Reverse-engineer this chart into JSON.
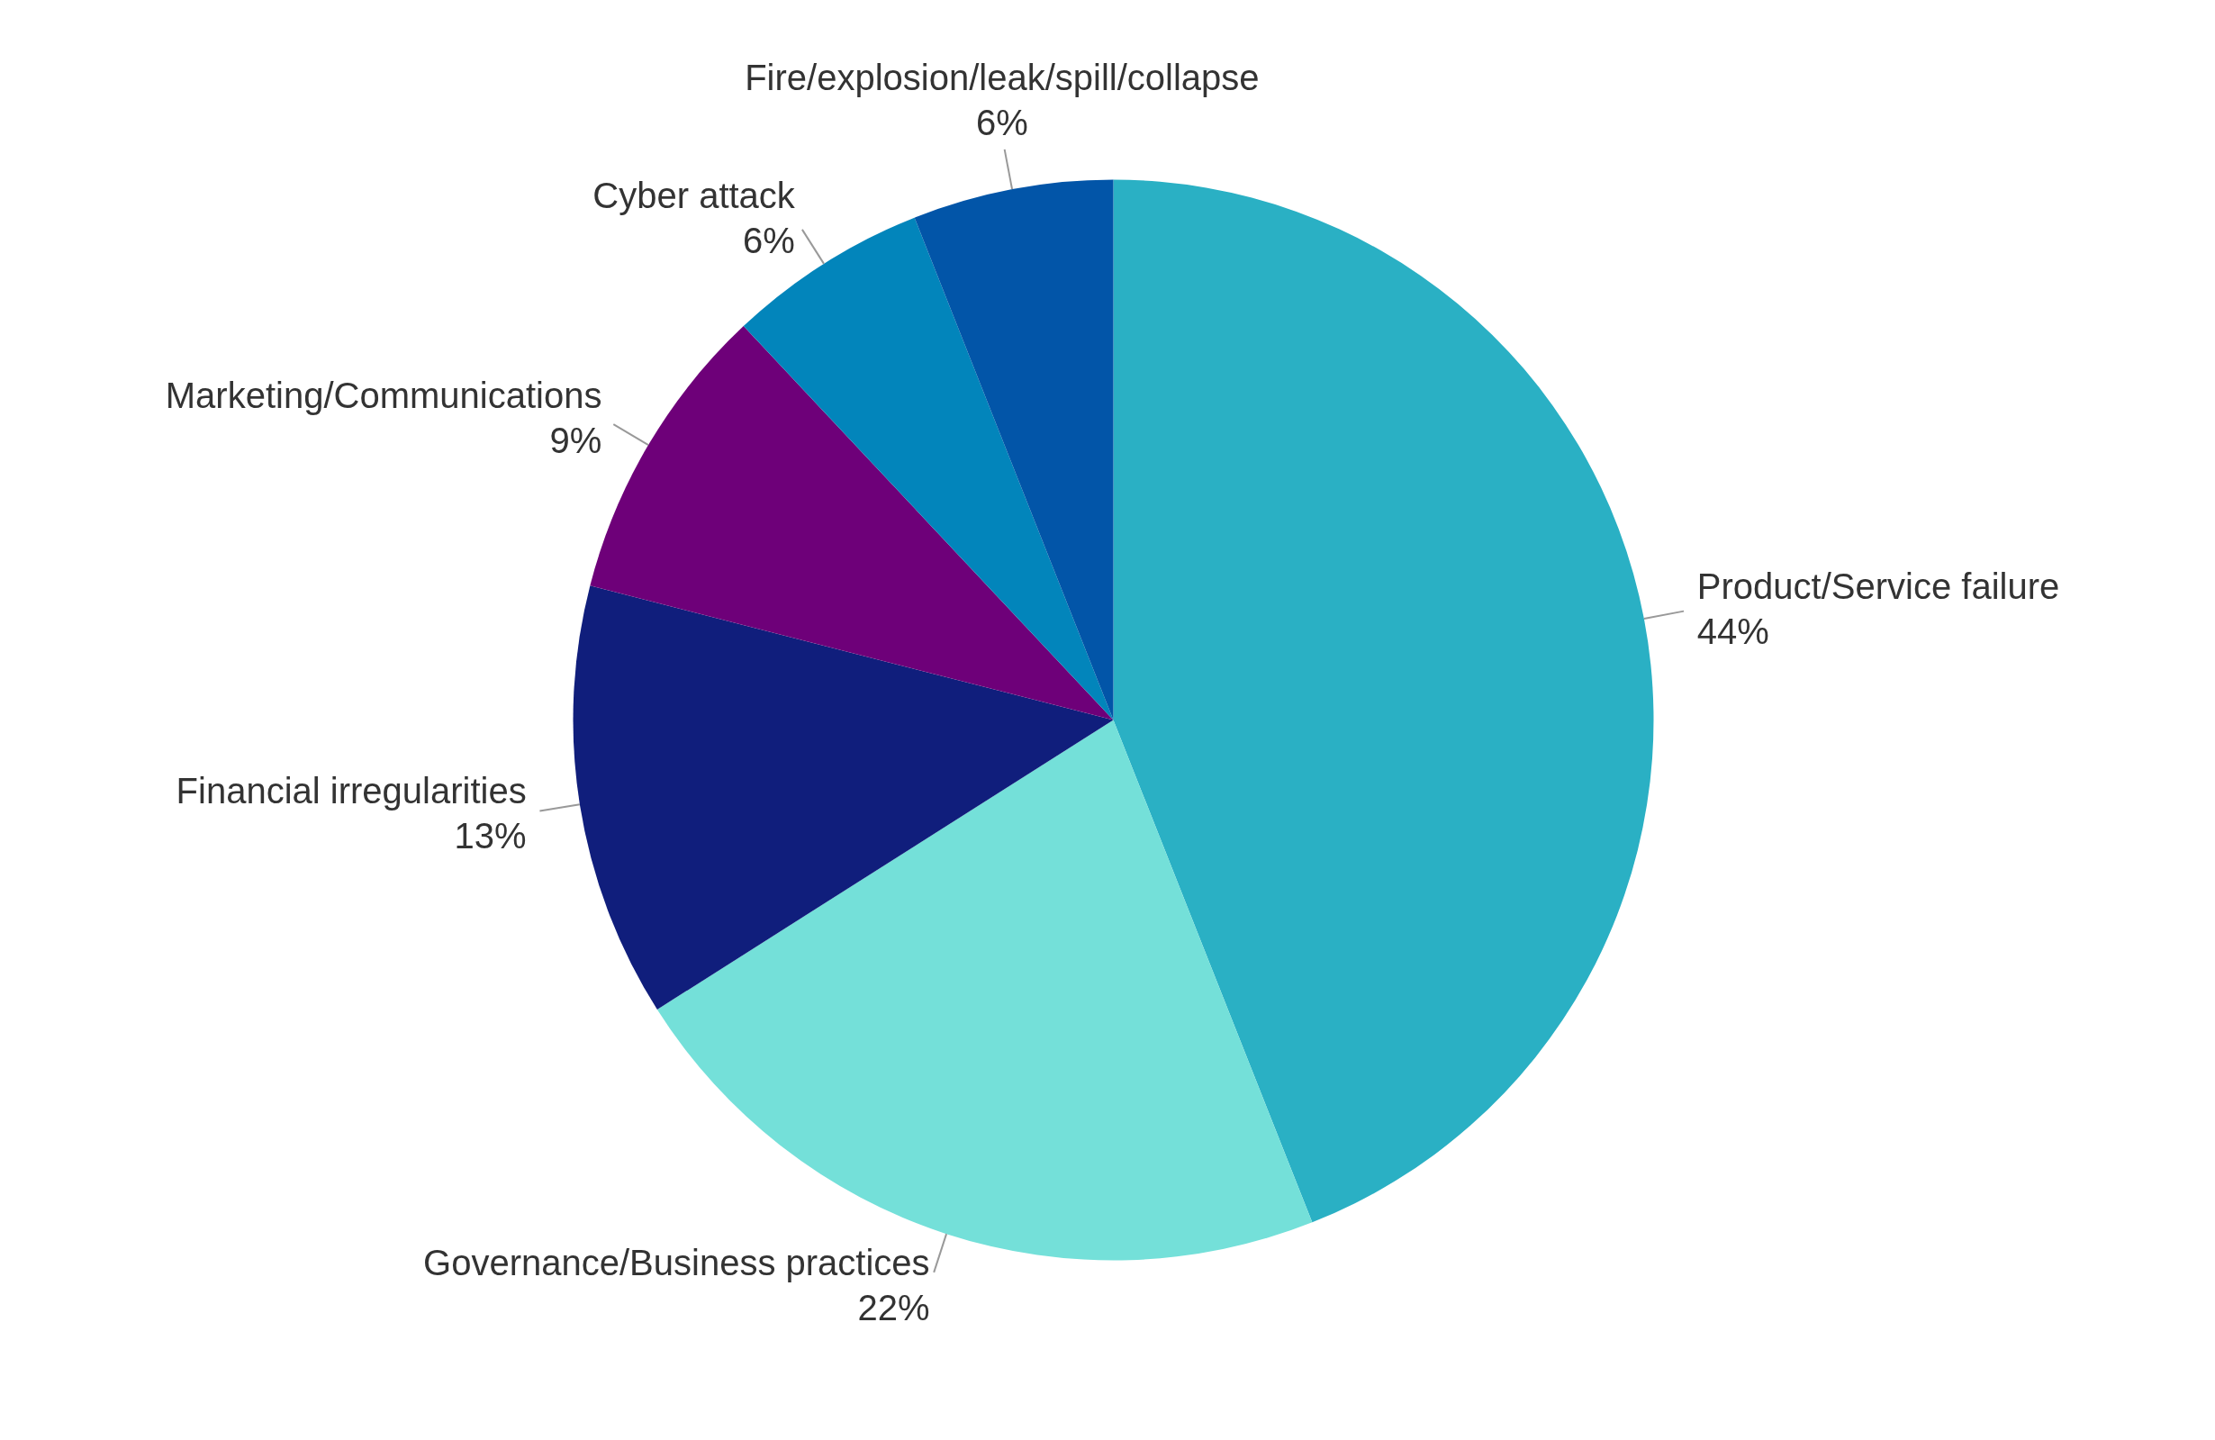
{
  "chart_data": {
    "type": "pie",
    "categories": [
      "Product/Service failure",
      "Governance/Business practices",
      "Financial irregularities",
      "Marketing/Communications",
      "Cyber attack",
      "Fire/explosion/leak/spill/collapse"
    ],
    "values": [
      44,
      22,
      13,
      9,
      6,
      6
    ],
    "value_labels": [
      "44%",
      "22%",
      "13%",
      "9%",
      "6%",
      "6%"
    ],
    "colors": [
      "#2ab0c4",
      "#74e0d9",
      "#101e7c",
      "#6e0079",
      "#0285bb",
      "#0255a8"
    ],
    "legend": false
  }
}
